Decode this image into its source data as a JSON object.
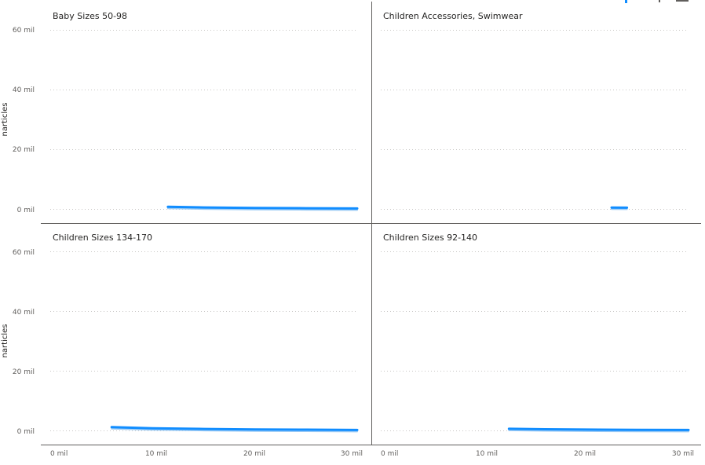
{
  "chart_data": {
    "type": "line",
    "xlabel": "",
    "ylabel": "narticles",
    "xlim": [
      0,
      30000
    ],
    "ylim": [
      0,
      60000
    ],
    "x_ticks": [
      "0 mil",
      "10 mil",
      "20 mil",
      "30 mil"
    ],
    "y_ticks": [
      "0 mil",
      "20 mil",
      "40 mil",
      "60 mil"
    ],
    "colors": {
      "series": "#118dff",
      "band": "#9ccbf5"
    },
    "panels": [
      {
        "title": "Baby Sizes 50-98",
        "series": [
          {
            "x": [
              11500,
              15000,
              20000,
              25000,
              30000
            ],
            "y": [
              700,
              500,
              350,
              250,
              150
            ]
          }
        ]
      },
      {
        "title": "Children Accessories, Swimwear",
        "series": [
          {
            "x": [
              22500,
              24000
            ],
            "y": [
              450,
              420
            ]
          }
        ]
      },
      {
        "title": "Children Sizes 134-170",
        "series": [
          {
            "x": [
              6000,
              10000,
              15000,
              20000,
              25000,
              30000
            ],
            "y": [
              1100,
              700,
              500,
              350,
              250,
              150
            ]
          }
        ]
      },
      {
        "title": "Children Sizes 92-140",
        "series": [
          {
            "x": [
              12500,
              16000,
              20000,
              25000,
              30000
            ],
            "y": [
              550,
              400,
              300,
              200,
              150
            ]
          }
        ]
      }
    ]
  }
}
